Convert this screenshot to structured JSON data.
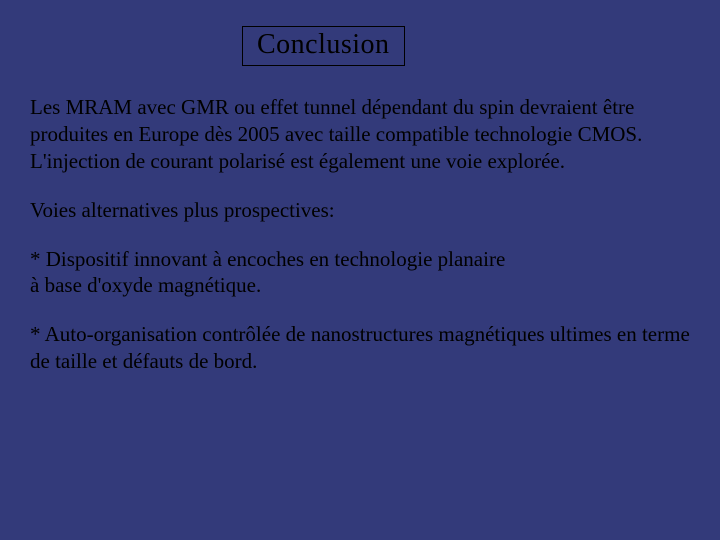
{
  "slide": {
    "background_color": "#333a7a",
    "text_color": "#000000",
    "title_border_color": "#000000",
    "font_family": "Times New Roman",
    "title_fontsize": 28,
    "body_fontsize": 21,
    "title": "Conclusion",
    "paragraphs": [
      "Les MRAM avec GMR ou effet tunnel dépendant du spin devraient être produites en Europe dès 2005 avec taille compatible technologie CMOS.\nL'injection de courant polarisé est également une voie explorée.",
      "Voies alternatives plus prospectives:",
      "* Dispositif innovant à encoches en technologie planaire\nà base d'oxyde magnétique.",
      "* Auto-organisation contrôlée de nanostructures magnétiques ultimes en terme de taille et défauts de bord."
    ]
  }
}
